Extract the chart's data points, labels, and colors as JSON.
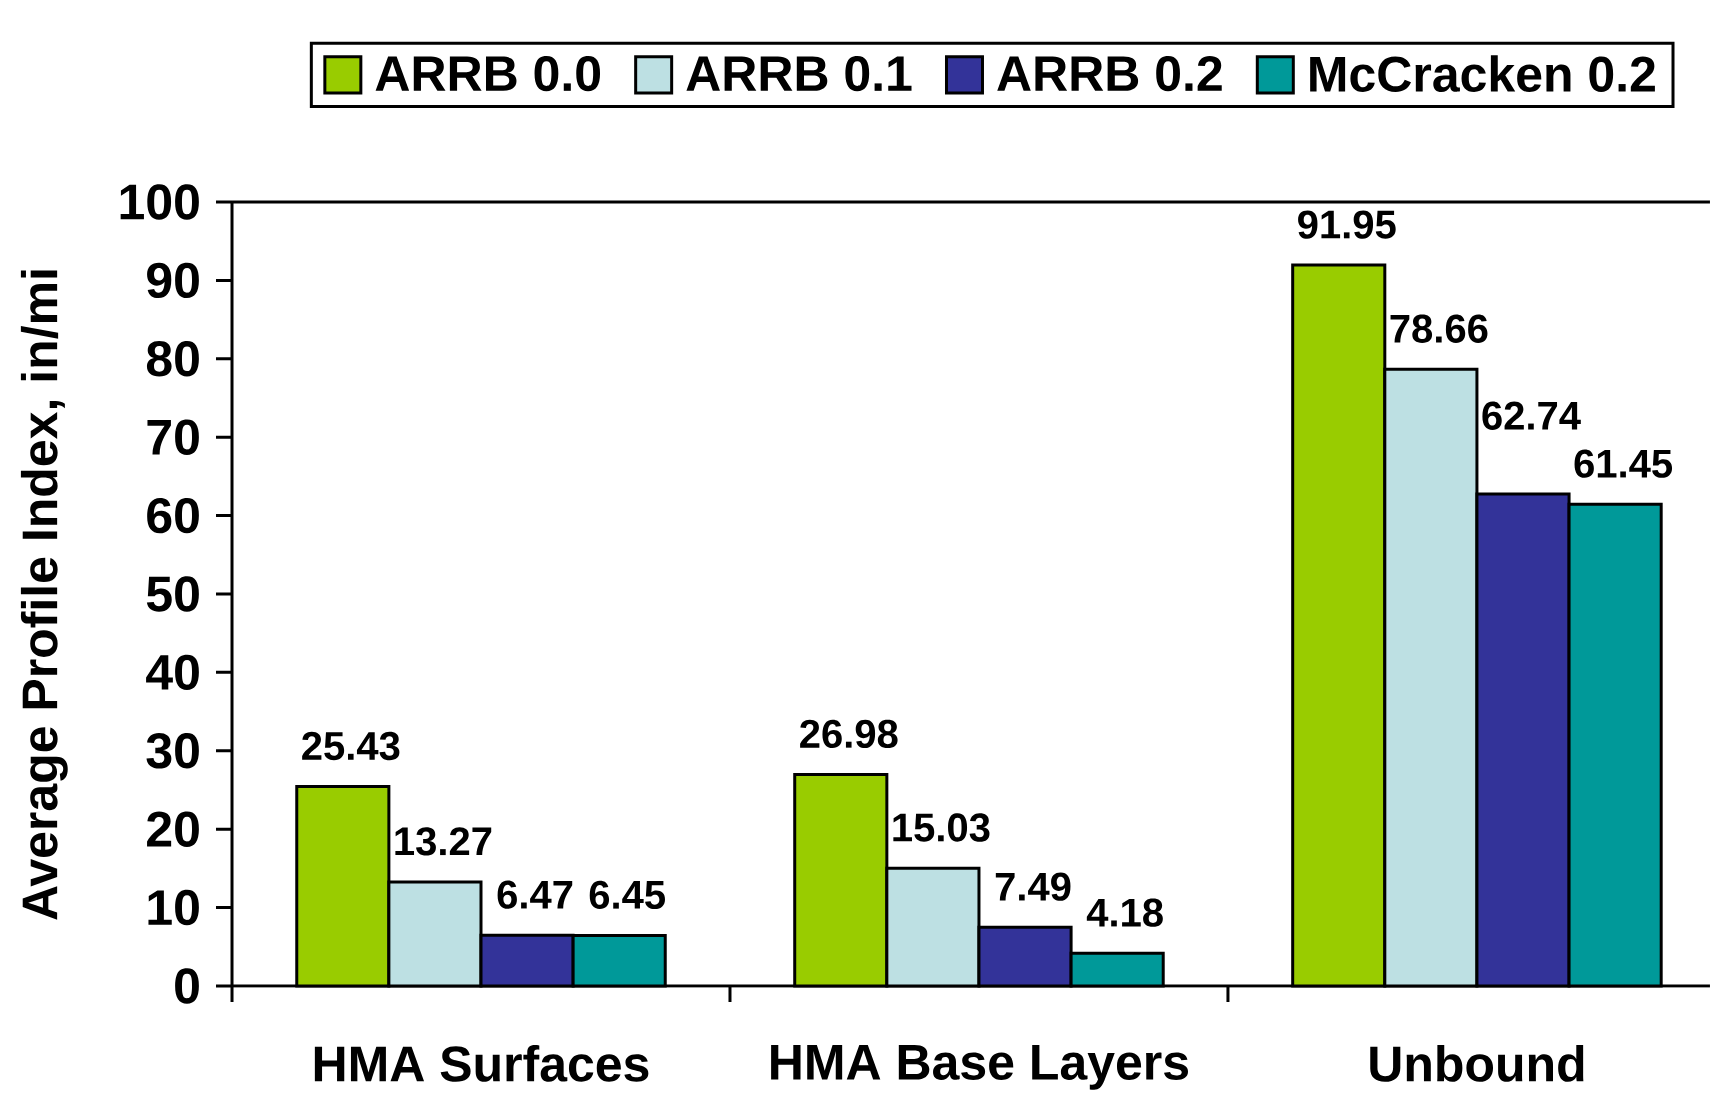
{
  "chart_data": {
    "type": "bar",
    "ylabel": "Average Profile Index, in/mi",
    "categories": [
      "HMA Surfaces",
      "HMA Base Layers",
      "Unbound"
    ],
    "series": [
      {
        "name": "ARRB 0.0",
        "color": "#99cc00",
        "values": [
          25.43,
          26.98,
          91.95
        ]
      },
      {
        "name": "ARRB 0.1",
        "color": "#bde0e3",
        "values": [
          13.27,
          15.03,
          78.66
        ]
      },
      {
        "name": "ARRB 0.2",
        "color": "#333399",
        "values": [
          6.47,
          7.49,
          62.74
        ]
      },
      {
        "name": "McCracken 0.2",
        "color": "#009999",
        "values": [
          6.45,
          4.18,
          61.45
        ]
      }
    ],
    "ylim": [
      0,
      100
    ],
    "yticks": [
      0,
      10,
      20,
      30,
      40,
      50,
      60,
      70,
      80,
      90,
      100
    ],
    "data_labels": true,
    "legend": "top"
  }
}
